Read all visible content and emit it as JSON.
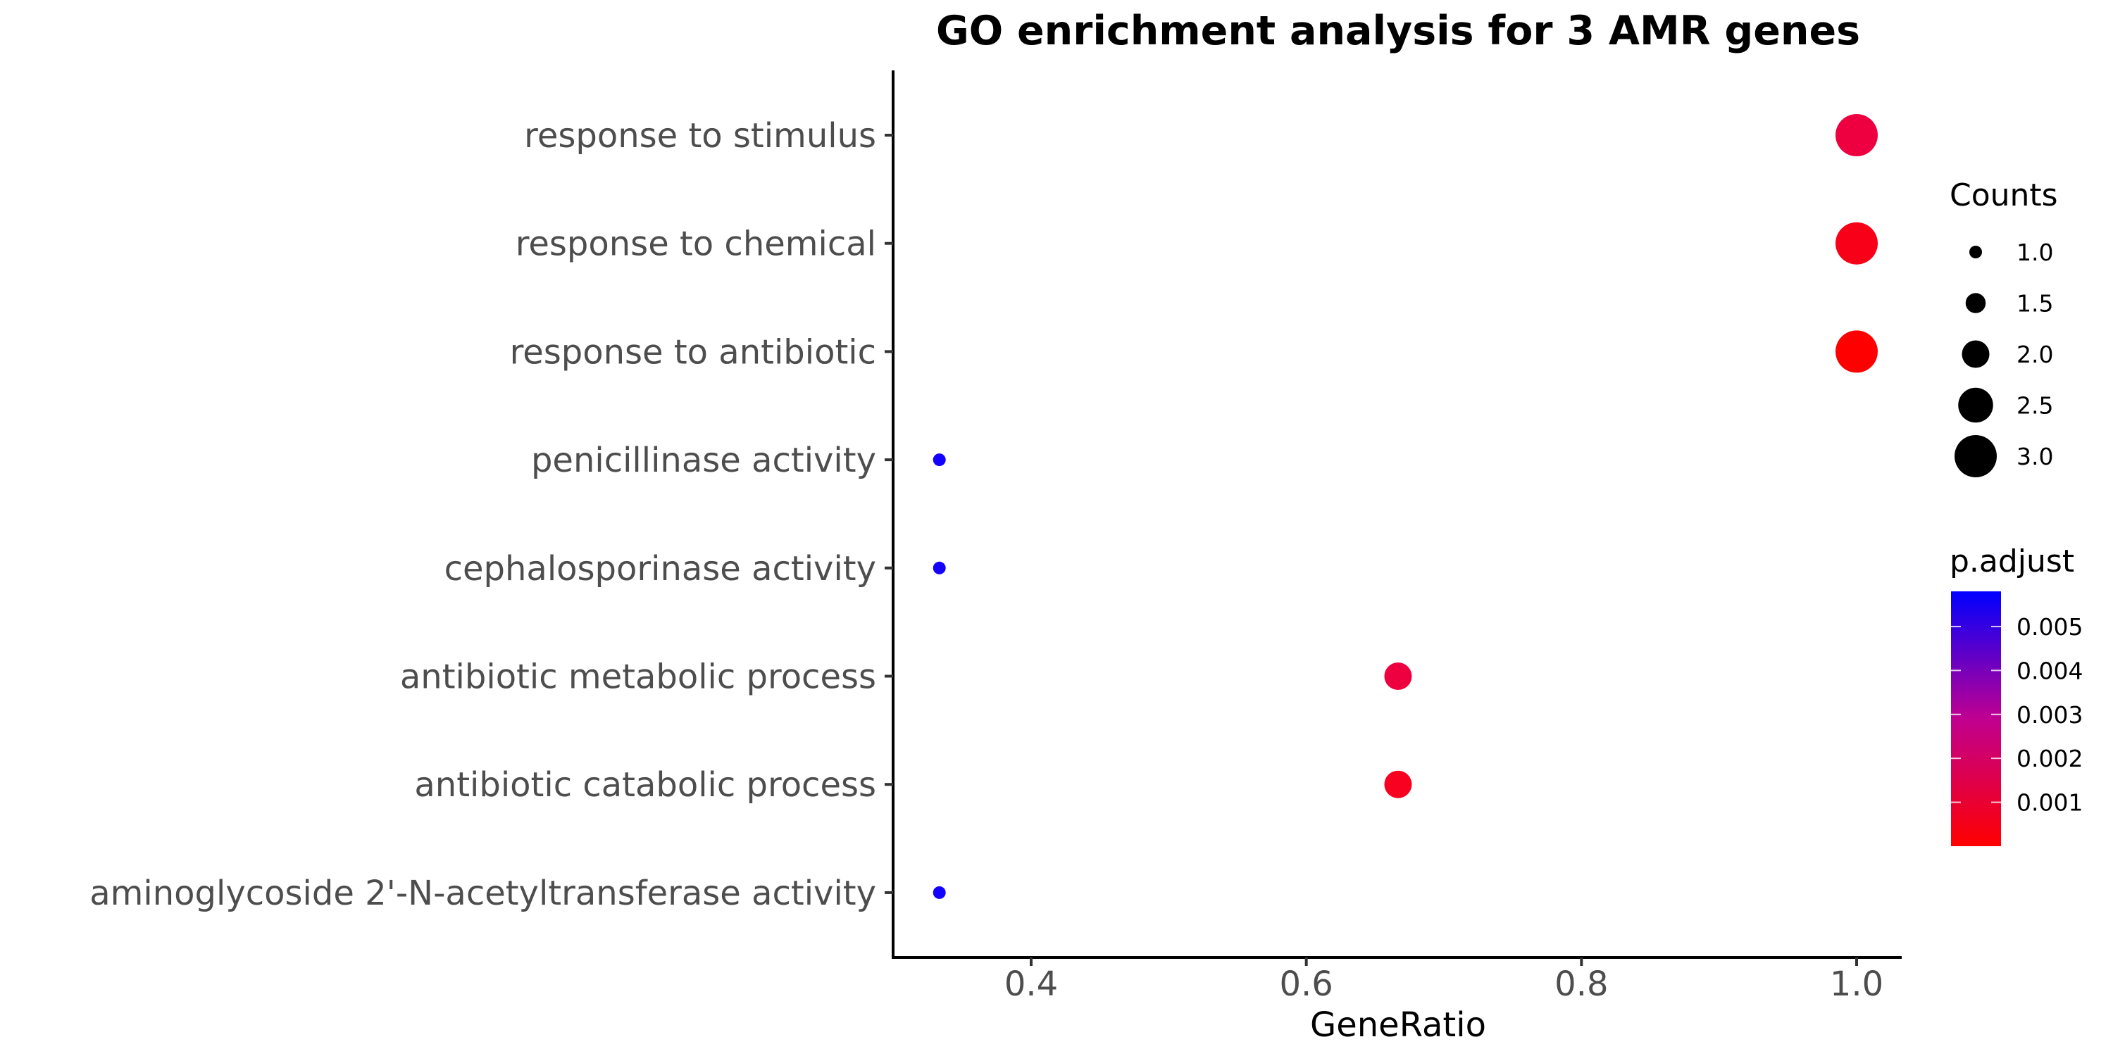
{
  "chart_data": {
    "type": "scatter",
    "title": "GO enrichment analysis for 3 AMR genes",
    "xlabel": "GeneRatio",
    "ylabel": "",
    "xlim": [
      0.3,
      1.033
    ],
    "x_ticks": [
      "0.4",
      "0.6",
      "0.8",
      "1.0"
    ],
    "grid": false,
    "categories": [
      "response to stimulus",
      "response to chemical",
      "response to antibiotic",
      "penicillinase activity",
      "cephalosporinase activity",
      "antibiotic metabolic process",
      "antibiotic catabolic process",
      "aminoglycoside 2'-N-acetyltransferase activity"
    ],
    "points": [
      {
        "term": "response to stimulus",
        "gene_ratio": 1.0,
        "count": 3,
        "p_adjust": 0.0012,
        "color": "#EE0040"
      },
      {
        "term": "response to chemical",
        "gene_ratio": 1.0,
        "count": 3,
        "p_adjust": 0.0005,
        "color": "#F80018"
      },
      {
        "term": "response to antibiotic",
        "gene_ratio": 1.0,
        "count": 3,
        "p_adjust": 0.0001,
        "color": "#FE0000"
      },
      {
        "term": "penicillinase activity",
        "gene_ratio": 0.3333,
        "count": 1,
        "p_adjust": 0.0057,
        "color": "#1400FF"
      },
      {
        "term": "cephalosporinase activity",
        "gene_ratio": 0.3333,
        "count": 1,
        "p_adjust": 0.0057,
        "color": "#1400FF"
      },
      {
        "term": "antibiotic metabolic process",
        "gene_ratio": 0.6667,
        "count": 2,
        "p_adjust": 0.0011,
        "color": "#EE0040"
      },
      {
        "term": "antibiotic catabolic process",
        "gene_ratio": 0.6667,
        "count": 2,
        "p_adjust": 0.0004,
        "color": "#F80020"
      },
      {
        "term": "aminoglycoside 2'-N-acetyltransferase activity",
        "gene_ratio": 0.3333,
        "count": 1,
        "p_adjust": 0.0057,
        "color": "#1400FF"
      }
    ],
    "legend_size": {
      "title": "Counts",
      "position": "right",
      "entries": [
        {
          "label": "1.0",
          "value": 1.0
        },
        {
          "label": "1.5",
          "value": 1.5
        },
        {
          "label": "2.0",
          "value": 2.0
        },
        {
          "label": "2.5",
          "value": 2.5
        },
        {
          "label": "3.0",
          "value": 3.0
        }
      ]
    },
    "legend_color": {
      "title": "p.adjust",
      "position": "right",
      "low_color": "#FF0000",
      "high_color": "#0000FF",
      "range": [
        0.0,
        0.0058
      ],
      "ticks": [
        {
          "label": "0.005",
          "value": 0.005
        },
        {
          "label": "0.004",
          "value": 0.004
        },
        {
          "label": "0.003",
          "value": 0.003
        },
        {
          "label": "0.002",
          "value": 0.002
        },
        {
          "label": "0.001",
          "value": 0.001
        }
      ]
    }
  }
}
